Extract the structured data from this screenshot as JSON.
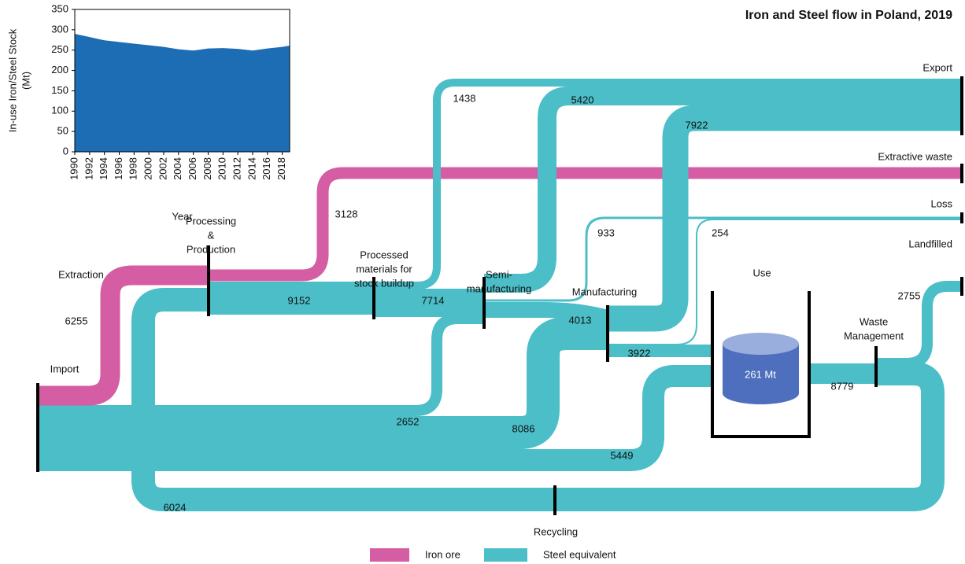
{
  "title": "Iron and Steel flow in Poland, 2019",
  "chart_data": {
    "type": "area",
    "y_label": [
      "In-use Iron/Steel Stock",
      "(Mt)"
    ],
    "x_label": "Year",
    "x": [
      1990,
      1992,
      1994,
      1996,
      1998,
      2000,
      2002,
      2004,
      2006,
      2008,
      2010,
      2012,
      2014,
      2016,
      2018,
      2019
    ],
    "values": [
      290,
      282,
      274,
      270,
      266,
      262,
      258,
      252,
      249,
      254,
      255,
      253,
      249,
      254,
      258,
      261
    ],
    "color": "#1c6db4",
    "xlim": [
      1990,
      2019
    ],
    "xticks": [
      1990,
      1992,
      1994,
      1996,
      1998,
      2000,
      2002,
      2004,
      2006,
      2008,
      2010,
      2012,
      2014,
      2016,
      2018
    ],
    "ylim": [
      0,
      350
    ],
    "yticks": [
      0,
      50,
      100,
      150,
      200,
      250,
      300,
      350
    ]
  },
  "diagram": {
    "nodes": {
      "extraction": [
        "Extraction"
      ],
      "import": [
        "Import"
      ],
      "processing": [
        "Processing",
        "&",
        "Production"
      ],
      "processed": [
        "Processed",
        "materials for",
        "stock buildup"
      ],
      "semi": [
        "Semi-",
        "manufacturing"
      ],
      "manufacturing": [
        "Manufacturing"
      ],
      "use": [
        "Use"
      ],
      "waste": [
        "Waste",
        "Management"
      ],
      "recycling": [
        "Recycling"
      ],
      "export": [
        "Export"
      ],
      "extractive_waste": [
        "Extractive waste"
      ],
      "loss": [
        "Loss"
      ],
      "landfilled": [
        "Landfilled"
      ]
    },
    "flows": [
      6255,
      3128,
      9152,
      1438,
      5420,
      7922,
      7714,
      933,
      254,
      4013,
      3922,
      2652,
      8086,
      5449,
      8779,
      2755,
      6024
    ],
    "stock_label": "261 Mt",
    "legend": [
      {
        "name": "Iron ore",
        "color": "#d55da3"
      },
      {
        "name": "Steel equivalent",
        "color": "#4bbec8"
      }
    ]
  }
}
